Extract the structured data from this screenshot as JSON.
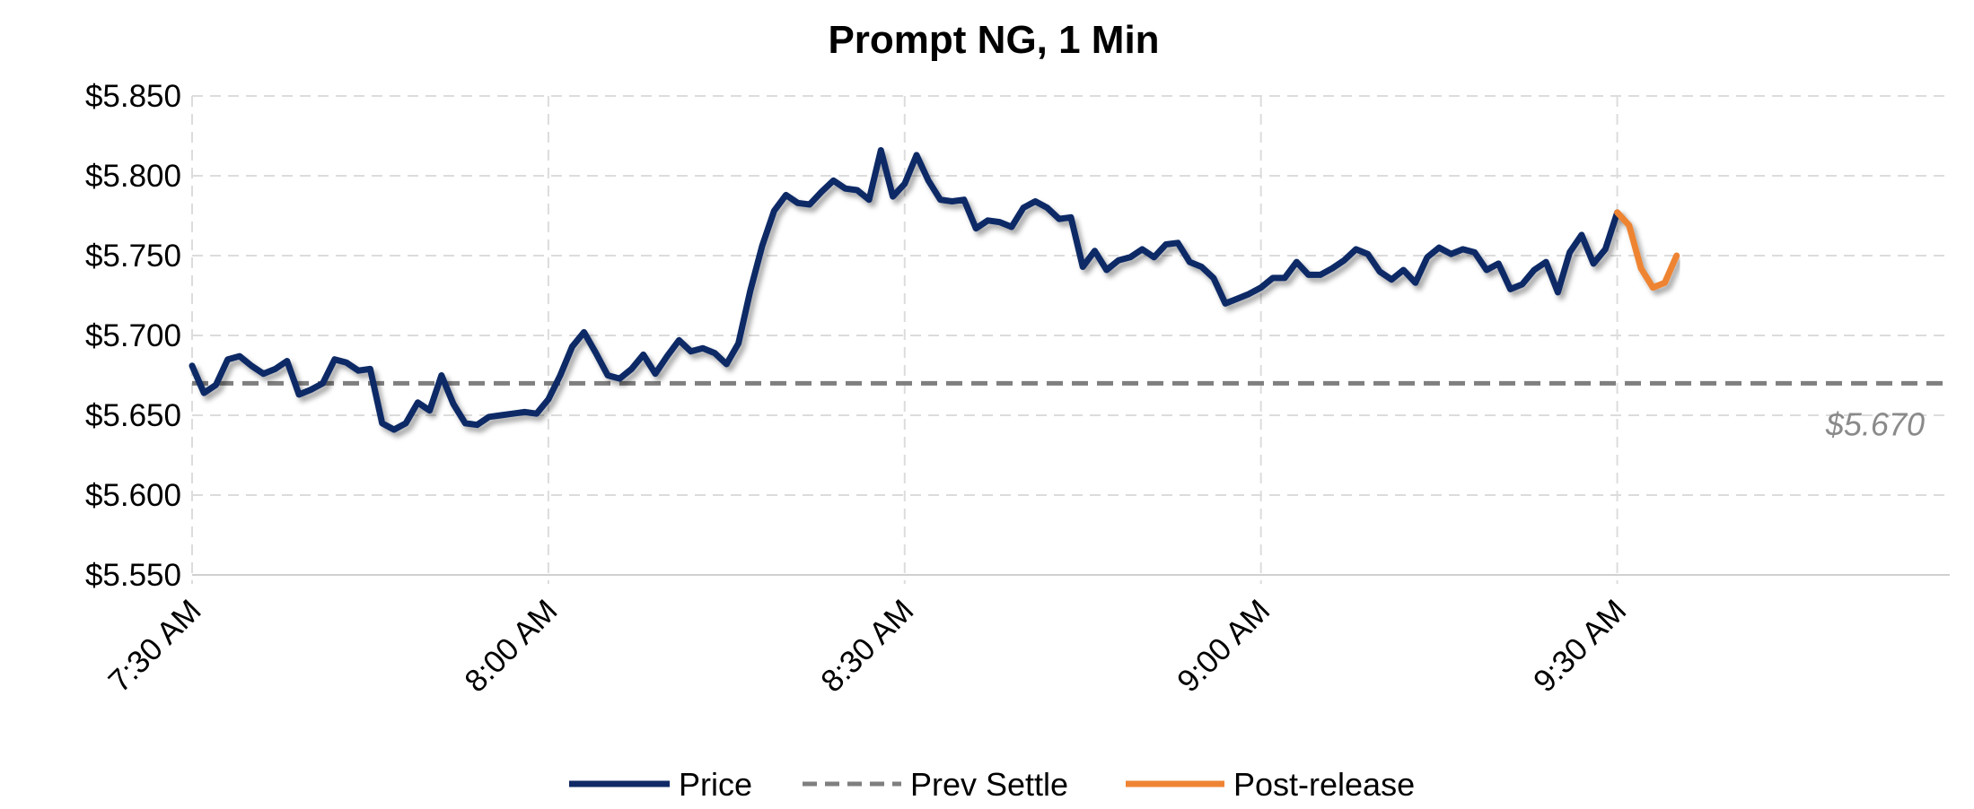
{
  "chart_data": {
    "type": "line",
    "title": "Prompt NG, 1 Min",
    "ylim": [
      5.55,
      5.85
    ],
    "yticks": [
      5.55,
      5.6,
      5.65,
      5.7,
      5.75,
      5.8,
      5.85
    ],
    "ytick_labels": [
      "$5.550",
      "$5.600",
      "$5.650",
      "$5.700",
      "$5.750",
      "$5.800",
      "$5.850"
    ],
    "xlim": [
      "7:30 AM",
      "9:58 AM"
    ],
    "xticks": [
      "7:30 AM",
      "8:00 AM",
      "8:30 AM",
      "9:00 AM",
      "9:30 AM"
    ],
    "grid": true,
    "legend_position": "bottom",
    "legend": [
      "Price",
      "Prev Settle",
      "Post-release"
    ],
    "colors": {
      "price": "#0f2a66",
      "prev_settle": "#7f7f7f",
      "post_release": "#ee8433"
    },
    "prev_settle": {
      "value": 5.67,
      "label": "$5.670"
    },
    "series": [
      {
        "name": "Price",
        "x": [
          "7:30",
          "7:31",
          "7:32",
          "7:33",
          "7:34",
          "7:35",
          "7:36",
          "7:37",
          "7:38",
          "7:39",
          "7:40",
          "7:41",
          "7:42",
          "7:43",
          "7:44",
          "7:45",
          "7:46",
          "7:47",
          "7:48",
          "7:49",
          "7:50",
          "7:51",
          "7:52",
          "7:53",
          "7:54",
          "7:55",
          "7:56",
          "7:57",
          "7:58",
          "7:59",
          "8:00",
          "8:01",
          "8:02",
          "8:03",
          "8:04",
          "8:05",
          "8:06",
          "8:07",
          "8:08",
          "8:09",
          "8:10",
          "8:11",
          "8:12",
          "8:13",
          "8:14",
          "8:15",
          "8:16",
          "8:17",
          "8:18",
          "8:19",
          "8:20",
          "8:21",
          "8:22",
          "8:23",
          "8:24",
          "8:25",
          "8:26",
          "8:27",
          "8:28",
          "8:29",
          "8:30",
          "8:31",
          "8:32",
          "8:33",
          "8:34",
          "8:35",
          "8:36",
          "8:37",
          "8:38",
          "8:39",
          "8:40",
          "8:41",
          "8:42",
          "8:43",
          "8:44",
          "8:45",
          "8:46",
          "8:47",
          "8:48",
          "8:49",
          "8:50",
          "8:51",
          "8:52",
          "8:53",
          "8:54",
          "8:55",
          "8:56",
          "8:57",
          "8:58",
          "8:59",
          "9:00",
          "9:01",
          "9:02",
          "9:03",
          "9:04",
          "9:05",
          "9:06",
          "9:07",
          "9:08",
          "9:09",
          "9:10",
          "9:11",
          "9:12",
          "9:13",
          "9:14",
          "9:15",
          "9:16",
          "9:17",
          "9:18",
          "9:19",
          "9:20",
          "9:21",
          "9:22",
          "9:23",
          "9:24",
          "9:25",
          "9:26",
          "9:27",
          "9:28",
          "9:29",
          "9:30"
        ],
        "y": [
          5.681,
          5.664,
          5.669,
          5.685,
          5.687,
          5.681,
          5.676,
          5.679,
          5.684,
          5.663,
          5.666,
          5.67,
          5.685,
          5.683,
          5.678,
          5.679,
          5.645,
          5.641,
          5.645,
          5.658,
          5.653,
          5.675,
          5.657,
          5.645,
          5.644,
          5.649,
          5.65,
          5.651,
          5.652,
          5.651,
          5.66,
          5.675,
          5.693,
          5.702,
          5.689,
          5.675,
          5.673,
          5.679,
          5.688,
          5.676,
          5.687,
          5.697,
          5.69,
          5.692,
          5.689,
          5.682,
          5.695,
          5.728,
          5.756,
          5.778,
          5.788,
          5.783,
          5.782,
          5.79,
          5.797,
          5.792,
          5.791,
          5.785,
          5.816,
          5.787,
          5.795,
          5.813,
          5.797,
          5.785,
          5.784,
          5.785,
          5.767,
          5.772,
          5.771,
          5.768,
          5.78,
          5.784,
          5.78,
          5.773,
          5.774,
          5.743,
          5.753,
          5.741,
          5.747,
          5.749,
          5.754,
          5.749,
          5.757,
          5.758,
          5.746,
          5.743,
          5.736,
          5.72,
          5.723,
          5.726,
          5.73,
          5.736,
          5.736,
          5.746,
          5.738,
          5.738,
          5.742,
          5.747,
          5.754,
          5.751,
          5.74,
          5.735,
          5.741,
          5.733,
          5.749,
          5.755,
          5.751,
          5.754,
          5.752,
          5.741,
          5.745,
          5.729,
          5.732,
          5.741,
          5.746,
          5.727,
          5.752,
          5.763,
          5.745,
          5.754,
          5.777
        ]
      },
      {
        "name": "Post-release",
        "x": [
          "9:30",
          "9:31",
          "9:32",
          "9:33",
          "9:34",
          "9:35"
        ],
        "y": [
          5.777,
          5.769,
          5.742,
          5.73,
          5.733,
          5.75
        ]
      }
    ]
  }
}
